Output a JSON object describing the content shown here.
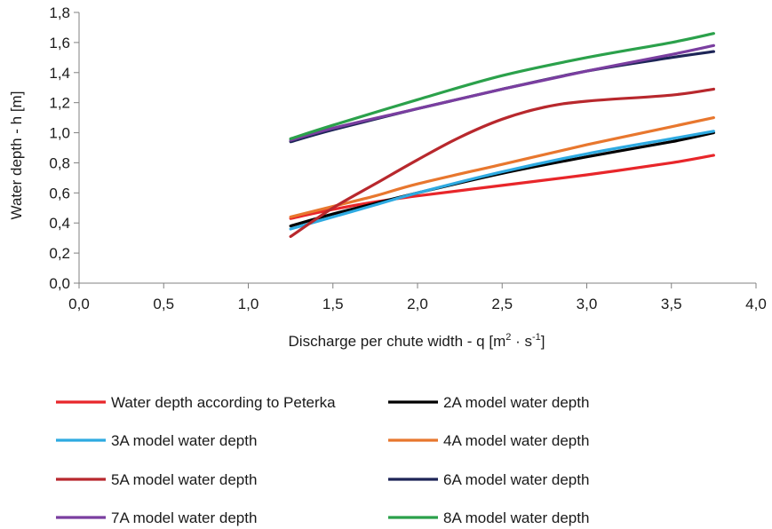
{
  "chart_data": {
    "type": "line",
    "xlabel_main": "Discharge per chute width - q [m",
    "xlabel_sup1": "2",
    "xlabel_mid": " · s",
    "xlabel_sup2": "-1",
    "xlabel_end": "]",
    "ylabel": "Water depth - h [m]",
    "xlim": [
      0,
      4
    ],
    "ylim": [
      0,
      1.8
    ],
    "x_ticks": [
      "0,0",
      "0,5",
      "1,0",
      "1,5",
      "2,0",
      "2,5",
      "3,0",
      "3,5",
      "4,0"
    ],
    "y_ticks": [
      "0,0",
      "0,2",
      "0,4",
      "0,6",
      "0,8",
      "1,0",
      "1,2",
      "1,4",
      "1,6",
      "1,8"
    ],
    "grid": false,
    "legend_position": "bottom",
    "series": [
      {
        "name": "Water depth according to Peterka",
        "color": "#e8262a",
        "x": [
          1.25,
          1.5,
          1.75,
          2.0,
          2.5,
          3.0,
          3.5,
          3.75
        ],
        "y": [
          0.43,
          0.49,
          0.54,
          0.58,
          0.65,
          0.72,
          0.8,
          0.85
        ]
      },
      {
        "name": "2A model water depth",
        "color": "#000000",
        "x": [
          1.25,
          1.5,
          1.75,
          2.0,
          2.5,
          3.0,
          3.5,
          3.75
        ],
        "y": [
          0.38,
          0.46,
          0.53,
          0.6,
          0.73,
          0.84,
          0.94,
          1.0
        ]
      },
      {
        "name": "3A model water depth",
        "color": "#2eaae1",
        "x": [
          1.25,
          1.5,
          1.75,
          2.0,
          2.5,
          3.0,
          3.5,
          3.75
        ],
        "y": [
          0.36,
          0.44,
          0.52,
          0.6,
          0.74,
          0.86,
          0.96,
          1.01
        ]
      },
      {
        "name": "4A model water depth",
        "color": "#e8772e",
        "x": [
          1.25,
          1.5,
          1.75,
          2.0,
          2.5,
          3.0,
          3.5,
          3.75
        ],
        "y": [
          0.44,
          0.51,
          0.58,
          0.66,
          0.79,
          0.92,
          1.04,
          1.1
        ]
      },
      {
        "name": "5A model water depth",
        "color": "#b8282d",
        "x": [
          1.25,
          1.5,
          1.75,
          2.0,
          2.25,
          2.5,
          2.75,
          3.0,
          3.5,
          3.75
        ],
        "y": [
          0.31,
          0.5,
          0.66,
          0.82,
          0.97,
          1.09,
          1.17,
          1.21,
          1.25,
          1.29
        ]
      },
      {
        "name": "6A model water depth",
        "color": "#1d2557",
        "x": [
          1.25,
          1.5,
          2.0,
          2.5,
          3.0,
          3.5,
          3.75
        ],
        "y": [
          0.94,
          1.02,
          1.16,
          1.29,
          1.41,
          1.5,
          1.54
        ]
      },
      {
        "name": "7A model water depth",
        "color": "#7a3ea0",
        "x": [
          1.25,
          1.5,
          2.0,
          2.5,
          3.0,
          3.5,
          3.75
        ],
        "y": [
          0.95,
          1.03,
          1.16,
          1.29,
          1.41,
          1.52,
          1.58
        ]
      },
      {
        "name": "8A model water depth",
        "color": "#2ba14b",
        "x": [
          1.25,
          1.5,
          2.0,
          2.5,
          3.0,
          3.5,
          3.75
        ],
        "y": [
          0.96,
          1.05,
          1.22,
          1.38,
          1.5,
          1.6,
          1.66
        ]
      }
    ]
  }
}
